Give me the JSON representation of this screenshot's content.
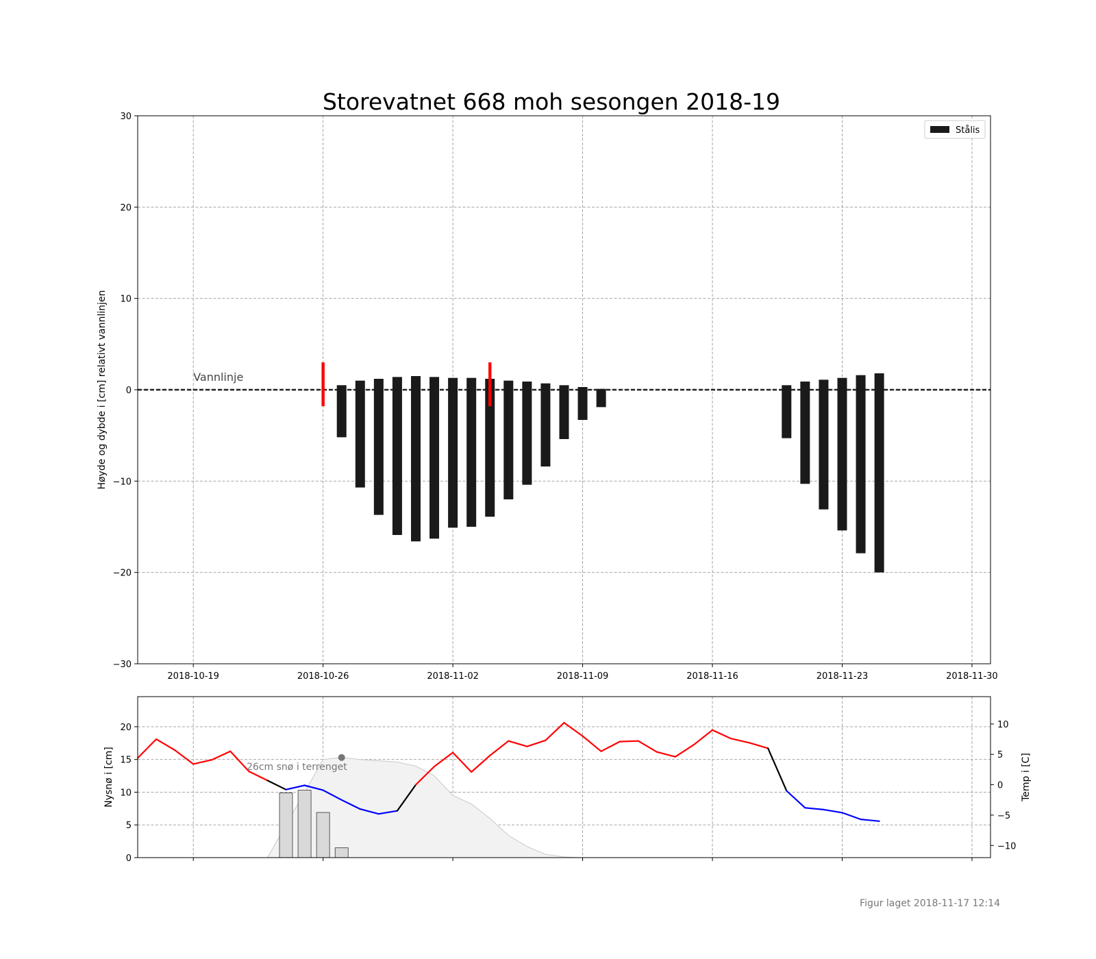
{
  "chart_data": [
    {
      "type": "bar",
      "title": "Storevatnet 668 moh sesongen 2018-19",
      "ylabel": "Høyde og dybde i [cm] relativt vannlinjen",
      "xlim": [
        "2018-10-16",
        "2018-12-01"
      ],
      "ylim": [
        -30,
        30
      ],
      "x_ticks": [
        "2018-10-19",
        "2018-10-26",
        "2018-11-02",
        "2018-11-09",
        "2018-11-16",
        "2018-11-23",
        "2018-11-30"
      ],
      "y_ticks": [
        -30,
        -20,
        -10,
        0,
        10,
        20,
        30
      ],
      "grid": true,
      "legend": {
        "placement": "top-right",
        "entries": [
          "Stålis"
        ]
      },
      "waterline": {
        "label": "Vannlinje",
        "value": 0
      },
      "series": [
        {
          "name": "Stålis",
          "color": "#1a1a1a",
          "bars": [
            {
              "date": "2018-10-27",
              "top": 0.5,
              "bottom": -5.2
            },
            {
              "date": "2018-10-28",
              "top": 1.0,
              "bottom": -10.7
            },
            {
              "date": "2018-10-29",
              "top": 1.2,
              "bottom": -13.7
            },
            {
              "date": "2018-10-30",
              "top": 1.4,
              "bottom": -15.9
            },
            {
              "date": "2018-10-31",
              "top": 1.5,
              "bottom": -16.6
            },
            {
              "date": "2018-11-01",
              "top": 1.4,
              "bottom": -16.3
            },
            {
              "date": "2018-11-02",
              "top": 1.3,
              "bottom": -15.1
            },
            {
              "date": "2018-11-03",
              "top": 1.3,
              "bottom": -15.0
            },
            {
              "date": "2018-11-04",
              "top": 1.2,
              "bottom": -13.9
            },
            {
              "date": "2018-11-05",
              "top": 1.0,
              "bottom": -12.0
            },
            {
              "date": "2018-11-06",
              "top": 0.9,
              "bottom": -10.4
            },
            {
              "date": "2018-11-07",
              "top": 0.7,
              "bottom": -8.4
            },
            {
              "date": "2018-11-08",
              "top": 0.5,
              "bottom": -5.4
            },
            {
              "date": "2018-11-09",
              "top": 0.3,
              "bottom": -3.3
            },
            {
              "date": "2018-11-10",
              "top": 0.1,
              "bottom": -1.9
            },
            {
              "date": "2018-11-20",
              "top": 0.5,
              "bottom": -5.3
            },
            {
              "date": "2018-11-21",
              "top": 0.9,
              "bottom": -10.3
            },
            {
              "date": "2018-11-22",
              "top": 1.1,
              "bottom": -13.1
            },
            {
              "date": "2018-11-23",
              "top": 1.3,
              "bottom": -15.4
            },
            {
              "date": "2018-11-24",
              "top": 1.6,
              "bottom": -17.9
            },
            {
              "date": "2018-11-25",
              "top": 1.8,
              "bottom": -20.0
            }
          ]
        }
      ],
      "markers": [
        {
          "date": "2018-10-26",
          "top": 3.0,
          "bottom": -1.8,
          "color": "#ff0000"
        },
        {
          "date": "2018-11-04",
          "top": 3.0,
          "bottom": -1.8,
          "color": "#ff0000"
        }
      ]
    },
    {
      "type": "bar",
      "ylabel": "Nysnø i [cm]",
      "y2label": "Temp i [C]",
      "xlim": [
        "2018-10-16",
        "2018-12-01"
      ],
      "ylim": [
        0,
        24.6
      ],
      "y2lim": [
        -12,
        14.5
      ],
      "y_ticks": [
        0,
        5,
        10,
        15,
        20
      ],
      "y2_ticks": [
        -10,
        -5,
        0,
        5,
        10
      ],
      "grid": true,
      "annotation": {
        "text": "26cm snø i terrenget",
        "date": "2018-10-27",
        "value": 15.3
      },
      "new_snow": [
        {
          "date": "2018-10-24",
          "value": 9.9
        },
        {
          "date": "2018-10-25",
          "value": 10.3
        },
        {
          "date": "2018-10-26",
          "value": 6.9
        },
        {
          "date": "2018-10-27",
          "value": 1.5
        }
      ],
      "snow_depth": {
        "dates": [
          "2018-10-23",
          "2018-10-24",
          "2018-10-25",
          "2018-10-26",
          "2018-10-27",
          "2018-10-28",
          "2018-10-29",
          "2018-10-30",
          "2018-10-31",
          "2018-11-01",
          "2018-11-02",
          "2018-11-03",
          "2018-11-04",
          "2018-11-05",
          "2018-11-06",
          "2018-11-07",
          "2018-11-08",
          "2018-11-09"
        ],
        "values": [
          0,
          5,
          10,
          15,
          15.3,
          15.0,
          14.8,
          14.6,
          14.0,
          12.5,
          9.5,
          8.2,
          6.0,
          3.4,
          1.7,
          0.5,
          0.1,
          0
        ]
      },
      "temperature": {
        "dates": [
          "2018-10-16",
          "2018-10-17",
          "2018-10-18",
          "2018-10-19",
          "2018-10-20",
          "2018-10-21",
          "2018-10-22",
          "2018-10-23",
          "2018-10-24",
          "2018-10-25",
          "2018-10-26",
          "2018-10-27",
          "2018-10-28",
          "2018-10-29",
          "2018-10-30",
          "2018-10-31",
          "2018-11-01",
          "2018-11-02",
          "2018-11-03",
          "2018-11-04",
          "2018-11-05",
          "2018-11-06",
          "2018-11-07",
          "2018-11-08",
          "2018-11-09",
          "2018-11-10",
          "2018-11-11",
          "2018-11-12",
          "2018-11-13",
          "2018-11-14",
          "2018-11-15",
          "2018-11-16",
          "2018-11-17",
          "2018-11-18",
          "2018-11-19",
          "2018-11-20",
          "2018-11-21",
          "2018-11-22",
          "2018-11-23",
          "2018-11-24",
          "2018-11-25"
        ],
        "values": [
          4.4,
          7.5,
          5.7,
          3.4,
          4.1,
          5.5,
          2.2,
          0.7,
          -0.8,
          -0.1,
          -0.9,
          -2.5,
          -4.0,
          -4.8,
          -4.3,
          0.0,
          3.0,
          5.3,
          2.1,
          4.8,
          7.2,
          6.3,
          7.3,
          10.2,
          8.0,
          5.5,
          7.1,
          7.2,
          5.4,
          4.6,
          6.6,
          9.0,
          7.6,
          6.9,
          6.0,
          -1.0,
          -3.8,
          -4.1,
          -4.6,
          -5.7,
          -6.0
        ],
        "colors": {
          "above_zero": "#ff0000",
          "transition": "#000000",
          "below_zero": "#0000ff"
        }
      }
    }
  ],
  "footer": {
    "text": "Figur laget 2018-11-17 12:14"
  }
}
